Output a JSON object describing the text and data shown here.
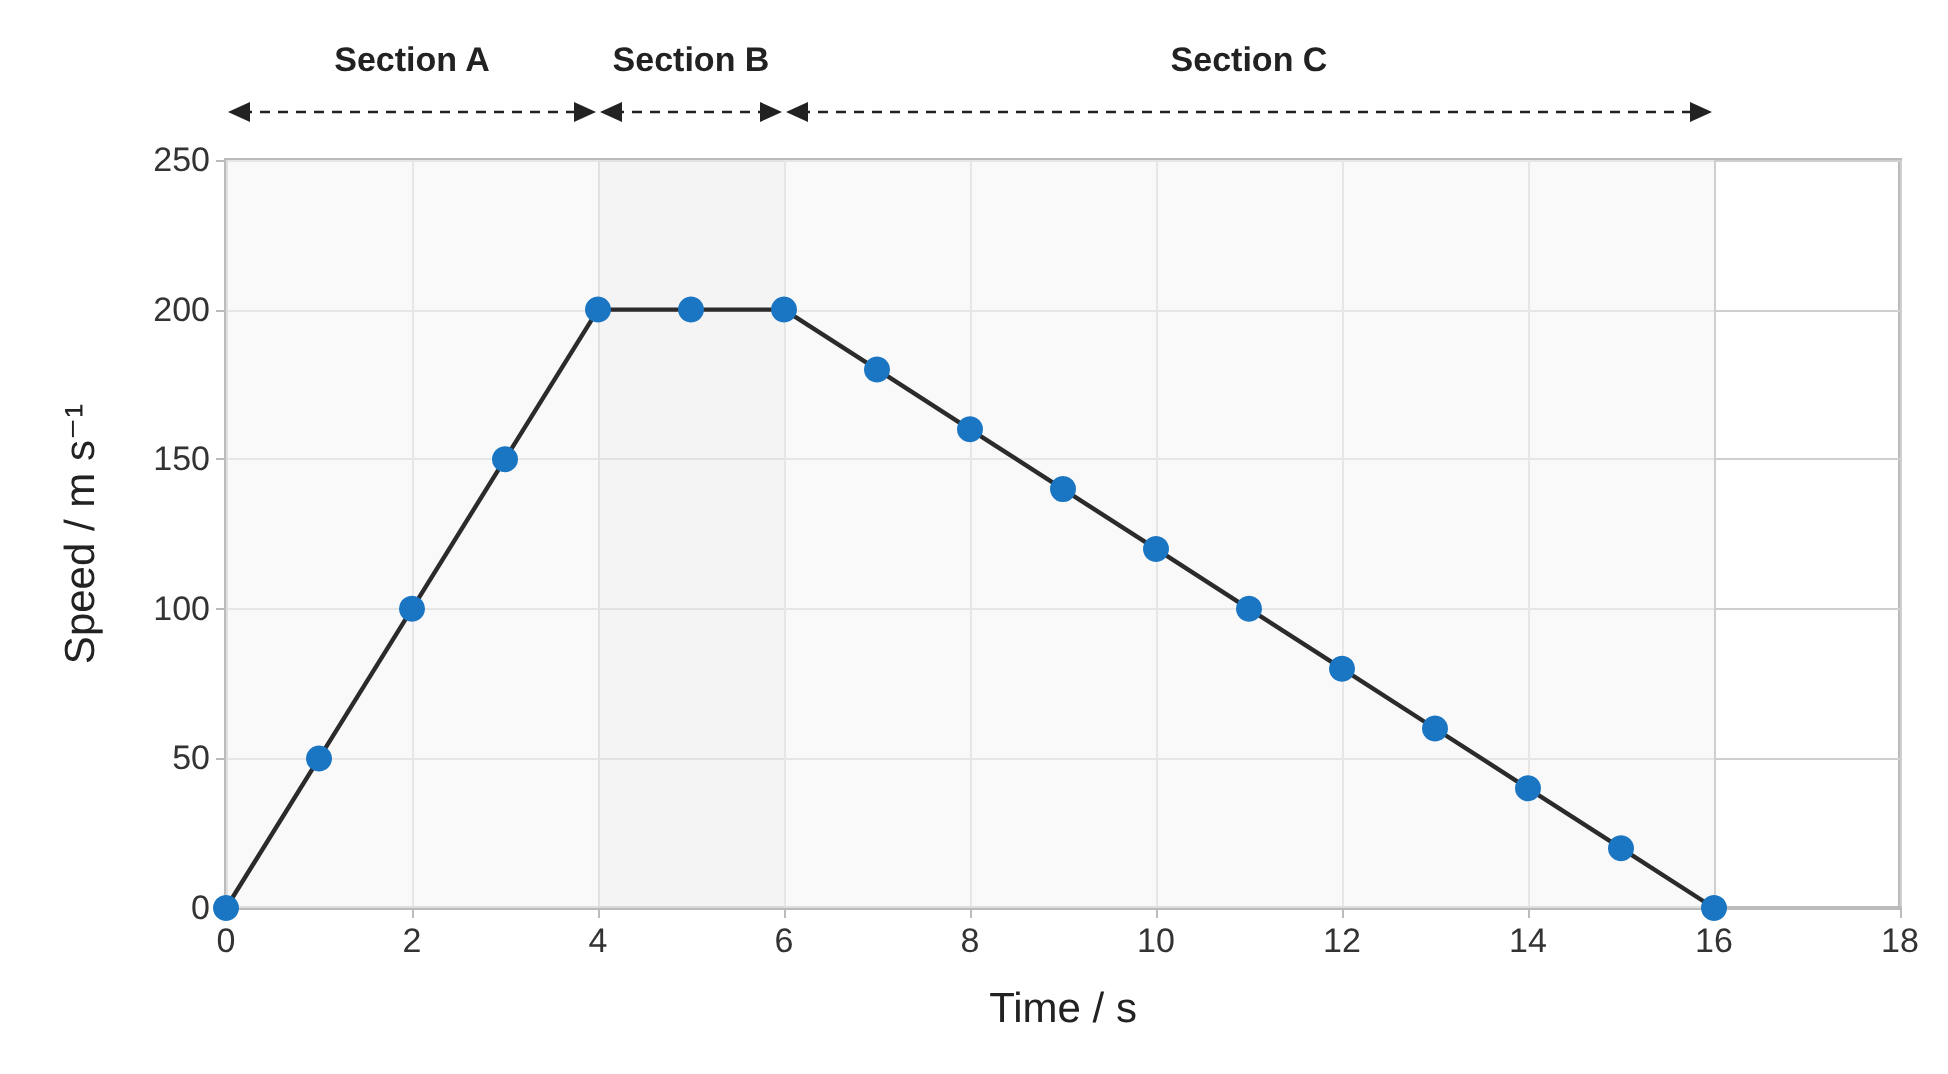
{
  "chart_data": {
    "type": "line",
    "xlabel": "Time / s",
    "ylabel": "Speed / m s⁻¹",
    "x": [
      0,
      1,
      2,
      3,
      4,
      5,
      6,
      7,
      8,
      9,
      10,
      11,
      12,
      13,
      14,
      15,
      16
    ],
    "series": [
      {
        "color": "#1a75c2",
        "values": [
          0,
          50,
          100,
          150,
          200,
          200,
          200,
          180,
          160,
          140,
          120,
          100,
          80,
          60,
          40,
          20,
          0
        ]
      }
    ],
    "xlim": [
      0,
      18
    ],
    "xticks": [
      0,
      2,
      4,
      6,
      8,
      10,
      12,
      14,
      16,
      18
    ],
    "ylim": [
      0,
      250
    ],
    "yticks": [
      0,
      50,
      100,
      150,
      200,
      250
    ],
    "grid": true,
    "marker": "circle",
    "line_style": "solid",
    "bands": [
      {
        "axis": "x",
        "from": 0,
        "to": 4,
        "label": "Section A"
      },
      {
        "axis": "x",
        "from": 4,
        "to": 6,
        "label": "Section B"
      },
      {
        "axis": "x",
        "from": 6,
        "to": 16,
        "label": "Section C"
      }
    ]
  }
}
